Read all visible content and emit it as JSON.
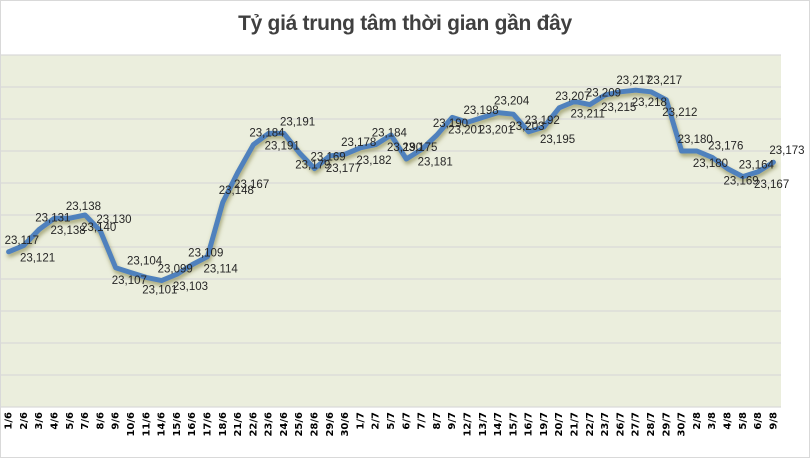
{
  "chart_data": {
    "type": "line",
    "title": "Tỷ giá trung tâm thời gian gần đây",
    "xlabel": "",
    "ylabel": "",
    "ylim": [
      23020,
      23240
    ],
    "grid": true,
    "legend": null,
    "categories": [
      "1/6",
      "2/6",
      "3/6",
      "4/6",
      "5/6",
      "7/6",
      "8/6",
      "9/6",
      "10/6",
      "11/6",
      "14/6",
      "15/6",
      "16/6",
      "17/6",
      "18/6",
      "21/6",
      "22/6",
      "23/6",
      "24/6",
      "25/6",
      "28/6",
      "29/6",
      "30/6",
      "1/7",
      "2/7",
      "5/7",
      "6/7",
      "7/7",
      "8/7",
      "9/7",
      "12/7",
      "13/7",
      "14/7",
      "15/7",
      "16/7",
      "19/7",
      "20/7",
      "21/7",
      "22/7",
      "23/7",
      "26/7",
      "27/7",
      "28/7",
      "29/7",
      "30/7",
      "2/8",
      "3/8",
      "4/8",
      "5/8",
      "6/8",
      "9/8"
    ],
    "series": [
      {
        "name": "Tỷ giá trung tâm",
        "color": "#4f81bd",
        "values": [
          23117,
          23121,
          23131,
          23138,
          23138,
          23140,
          23130,
          23107,
          23104,
          23101,
          23099,
          23103,
          23109,
          23114,
          23148,
          23167,
          23184,
          23191,
          23191,
          23179,
          23169,
          23177,
          23178,
          23182,
          23184,
          23190,
          23175,
          23181,
          23190,
          23201,
          23198,
          23201,
          23204,
          23203,
          23192,
          23195,
          23207,
          23211,
          23209,
          23215,
          23217,
          23218,
          23217,
          23212,
          23180,
          23180,
          23176,
          23169,
          23164,
          23167,
          23173
        ]
      }
    ]
  },
  "header": {
    "title": "Tỷ giá trung tâm thời gian gần đây"
  },
  "style": {
    "plot_bg": "#ebeedd",
    "grid_color": "#d9d9d9",
    "line_color": "#4f81bd",
    "shadow_color": "#8c8c50"
  }
}
